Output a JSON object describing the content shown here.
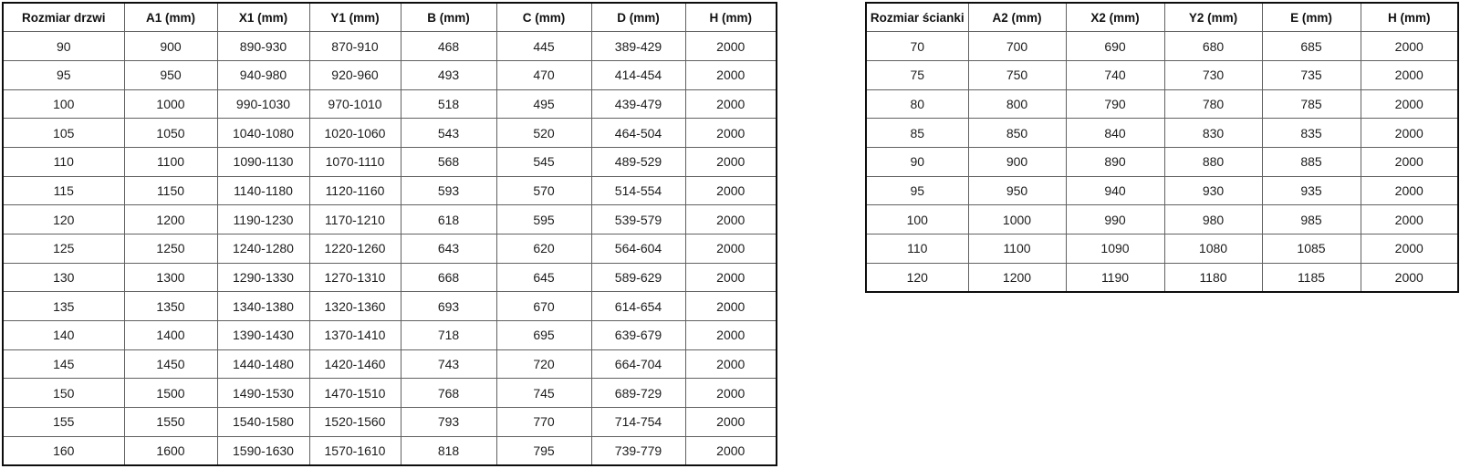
{
  "page": {
    "background": "#ffffff",
    "text_color": "#1a1a1a",
    "border_outer_color": "#0d0d0d",
    "border_inner_color": "#616161"
  },
  "tables": [
    {
      "name": "door-sizes-table",
      "headers": [
        "Rozmiar drzwi",
        "A1 (mm)",
        "X1 (mm)",
        "Y1 (mm)",
        "B (mm)",
        "C (mm)",
        "D (mm)",
        "H (mm)"
      ],
      "rows": [
        [
          "90",
          "900",
          "890-930",
          "870-910",
          "468",
          "445",
          "389-429",
          "2000"
        ],
        [
          "95",
          "950",
          "940-980",
          "920-960",
          "493",
          "470",
          "414-454",
          "2000"
        ],
        [
          "100",
          "1000",
          "990-1030",
          "970-1010",
          "518",
          "495",
          "439-479",
          "2000"
        ],
        [
          "105",
          "1050",
          "1040-1080",
          "1020-1060",
          "543",
          "520",
          "464-504",
          "2000"
        ],
        [
          "110",
          "1100",
          "1090-1130",
          "1070-1110",
          "568",
          "545",
          "489-529",
          "2000"
        ],
        [
          "115",
          "1150",
          "1140-1180",
          "1120-1160",
          "593",
          "570",
          "514-554",
          "2000"
        ],
        [
          "120",
          "1200",
          "1190-1230",
          "1170-1210",
          "618",
          "595",
          "539-579",
          "2000"
        ],
        [
          "125",
          "1250",
          "1240-1280",
          "1220-1260",
          "643",
          "620",
          "564-604",
          "2000"
        ],
        [
          "130",
          "1300",
          "1290-1330",
          "1270-1310",
          "668",
          "645",
          "589-629",
          "2000"
        ],
        [
          "135",
          "1350",
          "1340-1380",
          "1320-1360",
          "693",
          "670",
          "614-654",
          "2000"
        ],
        [
          "140",
          "1400",
          "1390-1430",
          "1370-1410",
          "718",
          "695",
          "639-679",
          "2000"
        ],
        [
          "145",
          "1450",
          "1440-1480",
          "1420-1460",
          "743",
          "720",
          "664-704",
          "2000"
        ],
        [
          "150",
          "1500",
          "1490-1530",
          "1470-1510",
          "768",
          "745",
          "689-729",
          "2000"
        ],
        [
          "155",
          "1550",
          "1540-1580",
          "1520-1560",
          "793",
          "770",
          "714-754",
          "2000"
        ],
        [
          "160",
          "1600",
          "1590-1630",
          "1570-1610",
          "818",
          "795",
          "739-779",
          "2000"
        ]
      ]
    },
    {
      "name": "wall-panel-sizes-table",
      "headers": [
        "Rozmiar ścianki",
        "A2 (mm)",
        "X2 (mm)",
        "Y2 (mm)",
        "E (mm)",
        "H (mm)"
      ],
      "rows": [
        [
          "70",
          "700",
          "690",
          "680",
          "685",
          "2000"
        ],
        [
          "75",
          "750",
          "740",
          "730",
          "735",
          "2000"
        ],
        [
          "80",
          "800",
          "790",
          "780",
          "785",
          "2000"
        ],
        [
          "85",
          "850",
          "840",
          "830",
          "835",
          "2000"
        ],
        [
          "90",
          "900",
          "890",
          "880",
          "885",
          "2000"
        ],
        [
          "95",
          "950",
          "940",
          "930",
          "935",
          "2000"
        ],
        [
          "100",
          "1000",
          "990",
          "980",
          "985",
          "2000"
        ],
        [
          "110",
          "1100",
          "1090",
          "1080",
          "1085",
          "2000"
        ],
        [
          "120",
          "1200",
          "1190",
          "1180",
          "1185",
          "2000"
        ]
      ]
    }
  ]
}
